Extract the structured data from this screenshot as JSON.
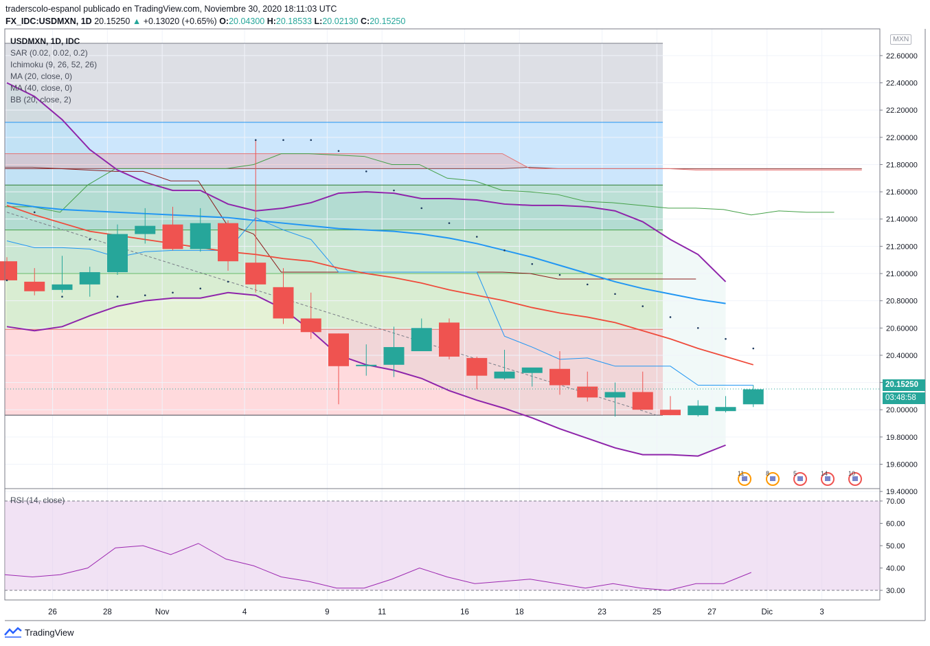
{
  "header": {
    "line1": "traderscolo-espanol publicado en TradingView.com, Noviembre 30, 2020 18:11:03 UTC",
    "symbol": "FX_IDC:USDMXN, 1D",
    "last": "20.15250",
    "change": "+0.13020 (+0.65%)",
    "o_label": "O:",
    "o": "20.04300",
    "h_label": "H:",
    "h": "20.18533",
    "l_label": "L:",
    "l": "20.02130",
    "c_label": "C:",
    "c": "20.15250"
  },
  "legend": {
    "title": "USDMXN, 1D, IDC",
    "sar": "SAR (0.02, 0.02, 0.2)",
    "ichimoku": "Ichimoku (9, 26, 52, 26)",
    "ma20": "MA (20, close, 0)",
    "ma40": "MA (40, close, 0)",
    "bb": "BB (20, close, 2)",
    "rsi": "RSI (14, close)"
  },
  "currency": "MXN",
  "price_tag": "20.15250",
  "timer_tag": "03:48:58",
  "footer": {
    "brand": "TradingView"
  },
  "events": [
    "11",
    "8",
    "5",
    "14",
    "10"
  ],
  "colors": {
    "up": "#26a69a",
    "down": "#ef5350",
    "bb": "#8e24aa",
    "ma20": "#2196f3",
    "ma40": "#ef4a3a",
    "rsi": "#9c27b0"
  },
  "chart_data": {
    "type": "candlestick",
    "x_ticks": [
      "26",
      "28",
      "Nov",
      "4",
      "9",
      "11",
      "16",
      "18",
      "23",
      "25",
      "27",
      "Dic",
      "3"
    ],
    "y_ticks": [
      "22.60000",
      "22.40000",
      "22.20000",
      "22.00000",
      "21.80000",
      "21.60000",
      "21.40000",
      "21.20000",
      "21.00000",
      "20.80000",
      "20.60000",
      "20.40000",
      "20.20000",
      "20.00000",
      "19.80000",
      "19.60000",
      "19.40000"
    ],
    "ylim": [
      19.4,
      22.72
    ],
    "candles": [
      {
        "o": 21.09,
        "h": 21.12,
        "l": 20.95,
        "c": 20.95
      },
      {
        "o": 20.94,
        "h": 21.04,
        "l": 20.84,
        "c": 20.87
      },
      {
        "o": 20.88,
        "h": 21.13,
        "l": 20.86,
        "c": 20.92
      },
      {
        "o": 20.92,
        "h": 21.05,
        "l": 20.83,
        "c": 21.01
      },
      {
        "o": 21.01,
        "h": 21.36,
        "l": 20.99,
        "c": 21.29
      },
      {
        "o": 21.29,
        "h": 21.48,
        "l": 21.22,
        "c": 21.35
      },
      {
        "o": 21.36,
        "h": 21.49,
        "l": 21.17,
        "c": 21.18
      },
      {
        "o": 21.18,
        "h": 21.48,
        "l": 21.16,
        "c": 21.37
      },
      {
        "o": 21.37,
        "h": 21.39,
        "l": 21.02,
        "c": 21.09
      },
      {
        "o": 21.08,
        "h": 21.98,
        "l": 20.86,
        "c": 20.92
      },
      {
        "o": 20.9,
        "h": 21.04,
        "l": 20.63,
        "c": 20.67
      },
      {
        "o": 20.67,
        "h": 20.86,
        "l": 20.52,
        "c": 20.57
      },
      {
        "o": 20.56,
        "h": 20.56,
        "l": 20.04,
        "c": 20.32
      },
      {
        "o": 20.33,
        "h": 20.48,
        "l": 20.25,
        "c": 20.33
      },
      {
        "o": 20.33,
        "h": 20.61,
        "l": 20.24,
        "c": 20.46
      },
      {
        "o": 20.43,
        "h": 20.67,
        "l": 20.43,
        "c": 20.6
      },
      {
        "o": 20.64,
        "h": 20.67,
        "l": 20.37,
        "c": 20.39
      },
      {
        "o": 20.38,
        "h": 20.39,
        "l": 20.15,
        "c": 20.25
      },
      {
        "o": 20.23,
        "h": 20.44,
        "l": 20.22,
        "c": 20.28
      },
      {
        "o": 20.27,
        "h": 20.3,
        "l": 20.17,
        "c": 20.31
      },
      {
        "o": 20.3,
        "h": 20.43,
        "l": 20.11,
        "c": 20.18
      },
      {
        "o": 20.17,
        "h": 20.28,
        "l": 20.06,
        "c": 20.09
      },
      {
        "o": 20.09,
        "h": 20.2,
        "l": 19.95,
        "c": 20.13
      },
      {
        "o": 20.13,
        "h": 20.28,
        "l": 20.0,
        "c": 20.0
      },
      {
        "o": 20.0,
        "h": 20.1,
        "l": 19.96,
        "c": 19.96
      },
      {
        "o": 19.96,
        "h": 20.07,
        "l": 19.95,
        "c": 20.03
      },
      {
        "o": 19.99,
        "h": 20.1,
        "l": 19.98,
        "c": 20.02
      },
      {
        "o": 20.04,
        "h": 20.18,
        "l": 20.02,
        "c": 20.15
      }
    ],
    "sar": [
      20.95,
      21.45,
      20.83,
      21.25,
      20.83,
      20.84,
      20.86,
      20.89,
      20.94,
      21.98,
      21.98,
      21.98,
      21.9,
      21.75,
      21.61,
      21.48,
      21.37,
      21.27,
      21.17,
      21.07,
      20.99,
      20.92,
      20.85,
      20.76,
      20.68,
      20.6,
      20.52,
      20.45
    ],
    "ma20": [
      21.24,
      21.19,
      21.19,
      21.18,
      21.12,
      21.16,
      21.17,
      21.17,
      21.17,
      21.41,
      21.32,
      21.25,
      21.01,
      21.01,
      21.01,
      21.01,
      21.01,
      21.01,
      20.54,
      20.46,
      20.37,
      20.38,
      20.32,
      20.32,
      20.32,
      20.18,
      20.18,
      20.18
    ],
    "ma40": [
      21.5,
      21.43,
      21.37,
      21.31,
      21.28,
      21.25,
      21.22,
      21.19,
      21.16,
      21.14,
      21.11,
      21.09,
      21.04,
      21.0,
      20.97,
      20.93,
      20.88,
      20.84,
      20.8,
      20.75,
      20.71,
      20.68,
      20.64,
      20.58,
      20.52,
      20.45,
      20.39,
      20.33
    ],
    "bb_upper": [
      22.4,
      22.3,
      22.13,
      21.91,
      21.76,
      21.67,
      21.61,
      21.61,
      21.51,
      21.46,
      21.48,
      21.52,
      21.59,
      21.6,
      21.59,
      21.55,
      21.55,
      21.54,
      21.51,
      21.5,
      21.5,
      21.49,
      21.46,
      21.38,
      21.25,
      21.14,
      20.94
    ],
    "bb_middle": [
      21.52,
      21.49,
      21.47,
      21.46,
      21.45,
      21.44,
      21.43,
      21.42,
      21.41,
      21.39,
      21.37,
      21.35,
      21.33,
      21.32,
      21.31,
      21.29,
      21.26,
      21.22,
      21.17,
      21.12,
      21.06,
      21.0,
      20.94,
      20.89,
      20.85,
      20.81,
      20.78
    ],
    "bb_lower": [
      20.61,
      20.58,
      20.61,
      20.69,
      20.76,
      20.8,
      20.82,
      20.82,
      20.86,
      20.84,
      20.74,
      20.58,
      20.4,
      20.33,
      20.29,
      20.23,
      20.14,
      20.07,
      20.01,
      19.94,
      19.86,
      19.79,
      19.72,
      19.67,
      19.67,
      19.66,
      19.74
    ],
    "ichimoku_span_a": [
      21.78,
      21.78,
      21.77,
      21.77,
      21.77,
      21.77,
      21.77,
      21.77,
      21.77,
      21.77,
      21.77,
      21.77,
      21.77,
      21.77,
      21.77,
      21.77,
      21.77,
      21.77,
      21.77,
      21.78,
      21.77,
      21.77,
      21.77,
      21.77,
      21.77,
      21.77,
      21.77,
      21.77,
      21.77,
      21.77,
      21.77,
      21.77
    ],
    "ichimoku_span_b": [
      21.88,
      21.88,
      21.88,
      21.88,
      21.88,
      21.88,
      21.88,
      21.88,
      21.88,
      21.88,
      21.88,
      21.88,
      21.88,
      21.88,
      21.88,
      21.88,
      21.88,
      21.88,
      21.88,
      21.77,
      21.77,
      21.77,
      21.77,
      21.77,
      21.77,
      21.76,
      21.76,
      21.76,
      21.76,
      21.76,
      21.76,
      21.76
    ],
    "ichimoku_lagging": [
      21.49,
      21.49,
      21.45,
      21.65,
      21.77,
      21.77,
      21.77,
      21.77,
      21.77,
      21.8,
      21.88,
      21.88,
      21.87,
      21.86,
      21.8,
      21.8,
      21.7,
      21.68,
      21.61,
      21.6,
      21.58,
      21.53,
      21.52,
      21.5,
      21.48,
      21.48,
      21.47,
      21.43,
      21.46,
      21.45,
      21.45
    ],
    "ichimoku_base": [
      21.77,
      21.77,
      21.77,
      21.76,
      21.75,
      21.75,
      21.68,
      21.68,
      21.37,
      21.29,
      21.01,
      21.01,
      21.01,
      21.01,
      21.01,
      21.01,
      21.01,
      21.01,
      21.01,
      21.0,
      20.96,
      20.96,
      20.96,
      20.96,
      20.96,
      20.96
    ],
    "fib_levels": [
      22.11,
      21.65,
      21.32,
      21.0,
      20.59,
      19.96
    ],
    "fib_top": 22.69,
    "rsi": {
      "ylim": [
        26,
        73
      ],
      "y_ticks": [
        "70.00",
        "60.00",
        "50.00",
        "40.00",
        "30.00"
      ],
      "band": [
        30,
        70
      ],
      "values": [
        37,
        36,
        37,
        40,
        49,
        50,
        46,
        51,
        44,
        41,
        36,
        34,
        31,
        31,
        35,
        40,
        36,
        33,
        34,
        35,
        33,
        31,
        33,
        31,
        30,
        33,
        33,
        38
      ]
    }
  }
}
